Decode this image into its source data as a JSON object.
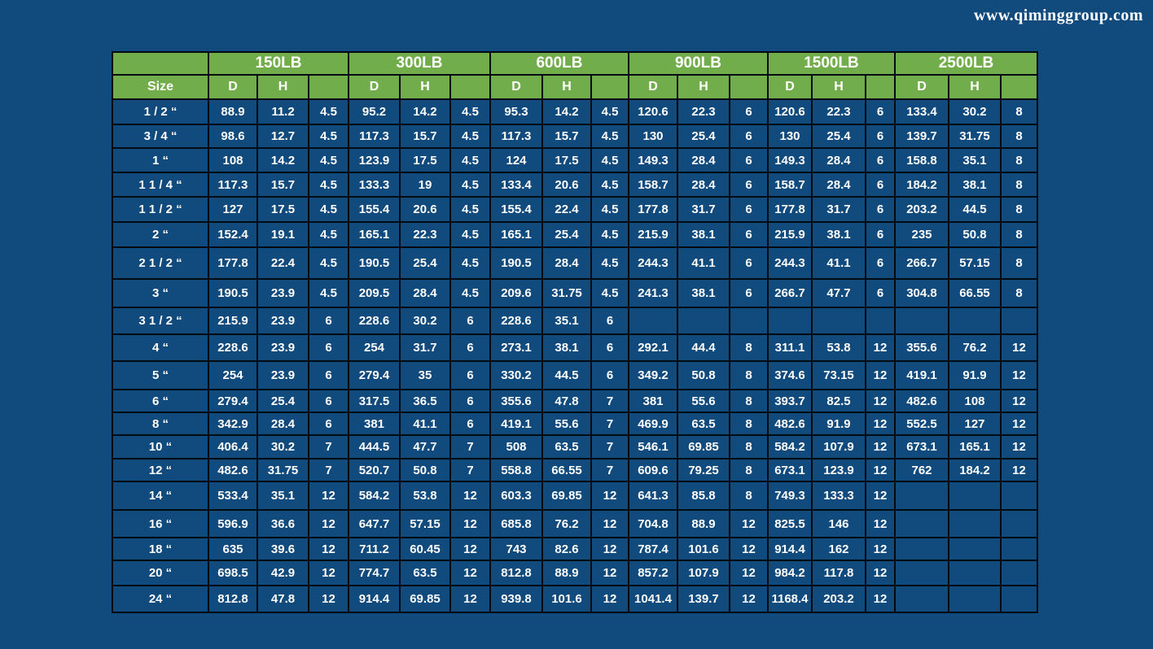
{
  "watermark": "www.qiminggroup.com",
  "colors": {
    "page_background": "#114A7C",
    "header_green": "#72AD4C",
    "grid_line": "#020A12",
    "text": "#FFFFFF"
  },
  "table": {
    "size_header": "Size",
    "pressure_classes": [
      "150LB",
      "300LB",
      "600LB",
      "900LB",
      "1500LB",
      "2500LB"
    ],
    "sub_headers": [
      "D",
      "H",
      ""
    ],
    "rows": [
      {
        "size": "1 / 2 “",
        "values": [
          "88.9",
          "11.2",
          "4.5",
          "95.2",
          "14.2",
          "4.5",
          "95.3",
          "14.2",
          "4.5",
          "120.6",
          "22.3",
          "6",
          "120.6",
          "22.3",
          "6",
          "133.4",
          "30.2",
          "8"
        ]
      },
      {
        "size": "3 / 4 “",
        "values": [
          "98.6",
          "12.7",
          "4.5",
          "117.3",
          "15.7",
          "4.5",
          "117.3",
          "15.7",
          "4.5",
          "130",
          "25.4",
          "6",
          "130",
          "25.4",
          "6",
          "139.7",
          "31.75",
          "8"
        ]
      },
      {
        "size": "1 “",
        "values": [
          "108",
          "14.2",
          "4.5",
          "123.9",
          "17.5",
          "4.5",
          "124",
          "17.5",
          "4.5",
          "149.3",
          "28.4",
          "6",
          "149.3",
          "28.4",
          "6",
          "158.8",
          "35.1",
          "8"
        ]
      },
      {
        "size": "1  1 / 4 “",
        "values": [
          "117.3",
          "15.7",
          "4.5",
          "133.3",
          "19",
          "4.5",
          "133.4",
          "20.6",
          "4.5",
          "158.7",
          "28.4",
          "6",
          "158.7",
          "28.4",
          "6",
          "184.2",
          "38.1",
          "8"
        ]
      },
      {
        "size": "1  1 / 2 “",
        "values": [
          "127",
          "17.5",
          "4.5",
          "155.4",
          "20.6",
          "4.5",
          "155.4",
          "22.4",
          "4.5",
          "177.8",
          "31.7",
          "6",
          "177.8",
          "31.7",
          "6",
          "203.2",
          "44.5",
          "8"
        ]
      },
      {
        "size": "2 “",
        "values": [
          "152.4",
          "19.1",
          "4.5",
          "165.1",
          "22.3",
          "4.5",
          "165.1",
          "25.4",
          "4.5",
          "215.9",
          "38.1",
          "6",
          "215.9",
          "38.1",
          "6",
          "235",
          "50.8",
          "8"
        ]
      },
      {
        "size": "2  1 / 2 “",
        "values": [
          "177.8",
          "22.4",
          "4.5",
          "190.5",
          "25.4",
          "4.5",
          "190.5",
          "28.4",
          "4.5",
          "244.3",
          "41.1",
          "6",
          "244.3",
          "41.1",
          "6",
          "266.7",
          "57.15",
          "8"
        ]
      },
      {
        "size": "3 “",
        "values": [
          "190.5",
          "23.9",
          "4.5",
          "209.5",
          "28.4",
          "4.5",
          "209.6",
          "31.75",
          "4.5",
          "241.3",
          "38.1",
          "6",
          "266.7",
          "47.7",
          "6",
          "304.8",
          "66.55",
          "8"
        ]
      },
      {
        "size": "3  1 / 2 “",
        "values": [
          "215.9",
          "23.9",
          "6",
          "228.6",
          "30.2",
          "6",
          "228.6",
          "35.1",
          "6",
          "",
          "",
          "",
          "",
          "",
          "",
          "",
          "",
          ""
        ]
      },
      {
        "size": "4 “",
        "values": [
          "228.6",
          "23.9",
          "6",
          "254",
          "31.7",
          "6",
          "273.1",
          "38.1",
          "6",
          "292.1",
          "44.4",
          "8",
          "311.1",
          "53.8",
          "12",
          "355.6",
          "76.2",
          "12"
        ]
      },
      {
        "size": "5 “",
        "values": [
          "254",
          "23.9",
          "6",
          "279.4",
          "35",
          "6",
          "330.2",
          "44.5",
          "6",
          "349.2",
          "50.8",
          "8",
          "374.6",
          "73.15",
          "12",
          "419.1",
          "91.9",
          "12"
        ]
      },
      {
        "size": "6 “",
        "values": [
          "279.4",
          "25.4",
          "6",
          "317.5",
          "36.5",
          "6",
          "355.6",
          "47.8",
          "7",
          "381",
          "55.6",
          "8",
          "393.7",
          "82.5",
          "12",
          "482.6",
          "108",
          "12"
        ]
      },
      {
        "size": "8 “",
        "values": [
          "342.9",
          "28.4",
          "6",
          "381",
          "41.1",
          "6",
          "419.1",
          "55.6",
          "7",
          "469.9",
          "63.5",
          "8",
          "482.6",
          "91.9",
          "12",
          "552.5",
          "127",
          "12"
        ]
      },
      {
        "size": "10 “",
        "values": [
          "406.4",
          "30.2",
          "7",
          "444.5",
          "47.7",
          "7",
          "508",
          "63.5",
          "7",
          "546.1",
          "69.85",
          "8",
          "584.2",
          "107.9",
          "12",
          "673.1",
          "165.1",
          "12"
        ]
      },
      {
        "size": "12 “",
        "values": [
          "482.6",
          "31.75",
          "7",
          "520.7",
          "50.8",
          "7",
          "558.8",
          "66.55",
          "7",
          "609.6",
          "79.25",
          "8",
          "673.1",
          "123.9",
          "12",
          "762",
          "184.2",
          "12"
        ]
      },
      {
        "size": "14 “",
        "values": [
          "533.4",
          "35.1",
          "12",
          "584.2",
          "53.8",
          "12",
          "603.3",
          "69.85",
          "12",
          "641.3",
          "85.8",
          "8",
          "749.3",
          "133.3",
          "12",
          "",
          "",
          ""
        ]
      },
      {
        "size": "16 “",
        "values": [
          "596.9",
          "36.6",
          "12",
          "647.7",
          "57.15",
          "12",
          "685.8",
          "76.2",
          "12",
          "704.8",
          "88.9",
          "12",
          "825.5",
          "146",
          "12",
          "",
          "",
          ""
        ]
      },
      {
        "size": "18 “",
        "values": [
          "635",
          "39.6",
          "12",
          "711.2",
          "60.45",
          "12",
          "743",
          "82.6",
          "12",
          "787.4",
          "101.6",
          "12",
          "914.4",
          "162",
          "12",
          "",
          "",
          ""
        ]
      },
      {
        "size": "20 “",
        "values": [
          "698.5",
          "42.9",
          "12",
          "774.7",
          "63.5",
          "12",
          "812.8",
          "88.9",
          "12",
          "857.2",
          "107.9",
          "12",
          "984.2",
          "117.8",
          "12",
          "",
          "",
          ""
        ]
      },
      {
        "size": "24 “",
        "values": [
          "812.8",
          "47.8",
          "12",
          "914.4",
          "69.85",
          "12",
          "939.8",
          "101.6",
          "12",
          "1041.4",
          "139.7",
          "12",
          "1168.4",
          "203.2",
          "12",
          "",
          "",
          ""
        ]
      }
    ]
  }
}
